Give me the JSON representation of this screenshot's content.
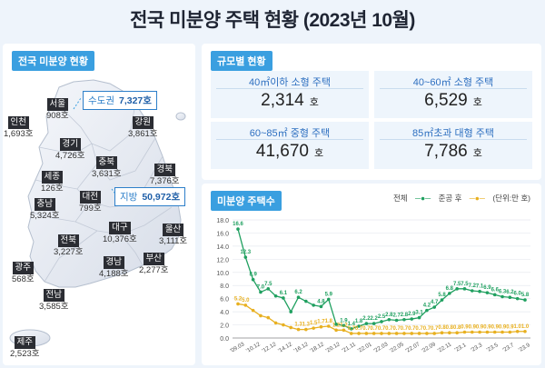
{
  "title": "전국 미분양 주택 현황 (2023년 10월)",
  "map_panel": {
    "header": "전국 미분양 현황",
    "capital": {
      "label": "수도권",
      "value": "7,327호"
    },
    "provinces": {
      "label": "지방",
      "value": "50,972호"
    },
    "regions": [
      {
        "name": "서울",
        "value": "908호"
      },
      {
        "name": "인천",
        "value": "1,693호"
      },
      {
        "name": "경기",
        "value": "4,726호"
      },
      {
        "name": "강원",
        "value": "3,861호"
      },
      {
        "name": "충북",
        "value": "3,631호"
      },
      {
        "name": "세종",
        "value": "126호"
      },
      {
        "name": "충남",
        "value": "5,324호"
      },
      {
        "name": "대전",
        "value": "799호"
      },
      {
        "name": "경북",
        "value": "7,376호"
      },
      {
        "name": "대구",
        "value": "10,376호"
      },
      {
        "name": "전북",
        "value": "3,227호"
      },
      {
        "name": "울산",
        "value": "3,111호"
      },
      {
        "name": "경남",
        "value": "4,188호"
      },
      {
        "name": "부산",
        "value": "2,277호"
      },
      {
        "name": "광주",
        "value": "568호"
      },
      {
        "name": "전남",
        "value": "3,585호"
      },
      {
        "name": "제주",
        "value": "2,523호"
      }
    ]
  },
  "size_panel": {
    "header": "규모별 현황",
    "cells": [
      {
        "category": "40㎡이하 소형 주택",
        "value": "2,314",
        "unit": "호"
      },
      {
        "category": "40~60㎡ 소형 주택",
        "value": "6,529",
        "unit": "호"
      },
      {
        "category": "60~85㎡ 중형 주택",
        "value": "41,670",
        "unit": "호"
      },
      {
        "category": "85㎡초과 대형 주택",
        "value": "7,786",
        "unit": "호"
      }
    ]
  },
  "chart_panel": {
    "header": "미분양 주택수",
    "legend": {
      "total": "전체",
      "completed": "준공 후",
      "unit": "(단위:만 호)"
    }
  },
  "colors": {
    "total": "#20a060",
    "completed": "#e8b020",
    "accent": "#3a9fe0"
  },
  "chart_data": {
    "type": "line",
    "ylim": [
      0,
      18
    ],
    "yticks": [
      "0.0",
      "2.0",
      "4.0",
      "6.0",
      "8.0",
      "10.0",
      "12.0",
      "14.0",
      "16.0",
      "18.0"
    ],
    "xticks": [
      "'09.03",
      "'10.12",
      "'12.12",
      "'14.12",
      "'16.12",
      "'18.12",
      "'20.12",
      "'21.11",
      "'22.01",
      "'22.03",
      "'22.05",
      "'22.07",
      "'22.09",
      "'22.11",
      "'23.1",
      "'23.3",
      "'23.5",
      "'23.7",
      "'23.9"
    ],
    "series": [
      {
        "name": "전체",
        "values": [
          16.6,
          12.3,
          8.9,
          7.0,
          7.5,
          6.4,
          6.1,
          4.0,
          6.2,
          5.6,
          5.0,
          4.8,
          5.9,
          2.1,
          1.9,
          1.4,
          1.8,
          2.2,
          2.2,
          2.5,
          2.8,
          2.7,
          2.8,
          2.9,
          3.1,
          4.2,
          4.7,
          5.8,
          6.8,
          7.5,
          7.5,
          7.2,
          7.1,
          6.9,
          6.6,
          6.3,
          6.2,
          6.0,
          5.8
        ],
        "labels": [
          "16.6",
          "12.3",
          "8.9",
          "7.0",
          "7.5",
          "",
          "6.1",
          "",
          "6.2",
          "",
          "",
          "4.8",
          "5.9",
          "",
          "1.9",
          "1.4",
          "1.8",
          "2.2",
          "2.2",
          "2.5",
          "2.8",
          "2.7",
          "2.8",
          "2.9",
          "3.1",
          "4.2",
          "4.7",
          "5.8",
          "6.8",
          "7.5",
          "7.5",
          "7.2",
          "7.1",
          "6.9",
          "6.6",
          "6.3",
          "6.2",
          "6.0",
          "5.8"
        ]
      },
      {
        "name": "준공 후",
        "values": [
          5.2,
          5.0,
          4.2,
          3.4,
          3.1,
          2.3,
          2.0,
          1.6,
          1.3,
          1.3,
          1.5,
          1.7,
          1.8,
          1.2,
          1.2,
          0.7,
          0.7,
          0.7,
          0.7,
          0.7,
          0.7,
          0.7,
          0.7,
          0.7,
          0.7,
          0.7,
          0.7,
          0.8,
          0.8,
          0.8,
          0.9,
          0.9,
          0.9,
          0.9,
          0.9,
          0.9,
          0.9,
          1.0,
          1.0
        ],
        "labels": [
          "5.2",
          "5.0",
          "",
          "",
          "",
          "",
          "",
          "",
          "1.3",
          "1.3",
          "1.5",
          "1.7",
          "1.8",
          "1.2",
          "1.2",
          "0.7",
          "0.7",
          "0.7",
          "0.7",
          "0.7",
          "0.7",
          "0.7",
          "0.7",
          "0.7",
          "0.7",
          "0.7",
          "0.7",
          "0.8",
          "0.8",
          "0.8",
          "0.9",
          "0.9",
          "0.9",
          "0.9",
          "0.9",
          "0.9",
          "0.9",
          "1.0",
          "1.0"
        ]
      }
    ]
  }
}
